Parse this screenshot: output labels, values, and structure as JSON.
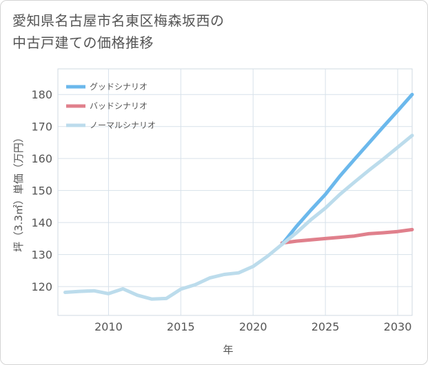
{
  "chart_data": {
    "type": "line",
    "title_line1": "愛知県名古屋市名東区梅森坂西の",
    "title_line2": "中古戸建ての価格推移",
    "xlabel": "年",
    "ylabel": "坪（3.3㎡）単価（万円）",
    "xlim": [
      2006.5,
      2031
    ],
    "ylim": [
      111,
      188
    ],
    "x_ticks": [
      2010,
      2015,
      2020,
      2025,
      2030
    ],
    "y_ticks": [
      120,
      130,
      140,
      150,
      160,
      170,
      180
    ],
    "legend_position": "top-left",
    "series": [
      {
        "name": "グッドシナリオ",
        "color": "#6bb8ec",
        "x": [
          2022,
          2023,
          2024,
          2025,
          2026,
          2027,
          2028,
          2029,
          2030,
          2031
        ],
        "values": [
          133.2,
          138.8,
          143.9,
          148.8,
          154.5,
          159.7,
          164.8,
          169.9,
          174.9,
          180.0
        ]
      },
      {
        "name": "バッドシナリオ",
        "color": "#e0808c",
        "x": [
          2022,
          2023,
          2024,
          2025,
          2026,
          2027,
          2028,
          2029,
          2030,
          2031
        ],
        "values": [
          133.6,
          134.2,
          134.6,
          135.0,
          135.4,
          135.8,
          136.5,
          136.8,
          137.2,
          137.8
        ]
      },
      {
        "name": "ノーマルシナリオ",
        "color": "#bcdcec",
        "x": [
          2007,
          2008,
          2009,
          2010,
          2011,
          2012,
          2013,
          2014,
          2015,
          2016,
          2017,
          2018,
          2019,
          2020,
          2021,
          2022,
          2023,
          2024,
          2025,
          2026,
          2027,
          2028,
          2029,
          2030,
          2031
        ],
        "values": [
          118.2,
          118.5,
          118.7,
          117.8,
          119.3,
          117.3,
          116.1,
          116.3,
          119.2,
          120.6,
          122.7,
          123.8,
          124.3,
          126.3,
          129.5,
          133.2,
          136.8,
          140.9,
          144.5,
          148.8,
          152.6,
          156.3,
          159.8,
          163.5,
          167.2
        ]
      }
    ]
  }
}
